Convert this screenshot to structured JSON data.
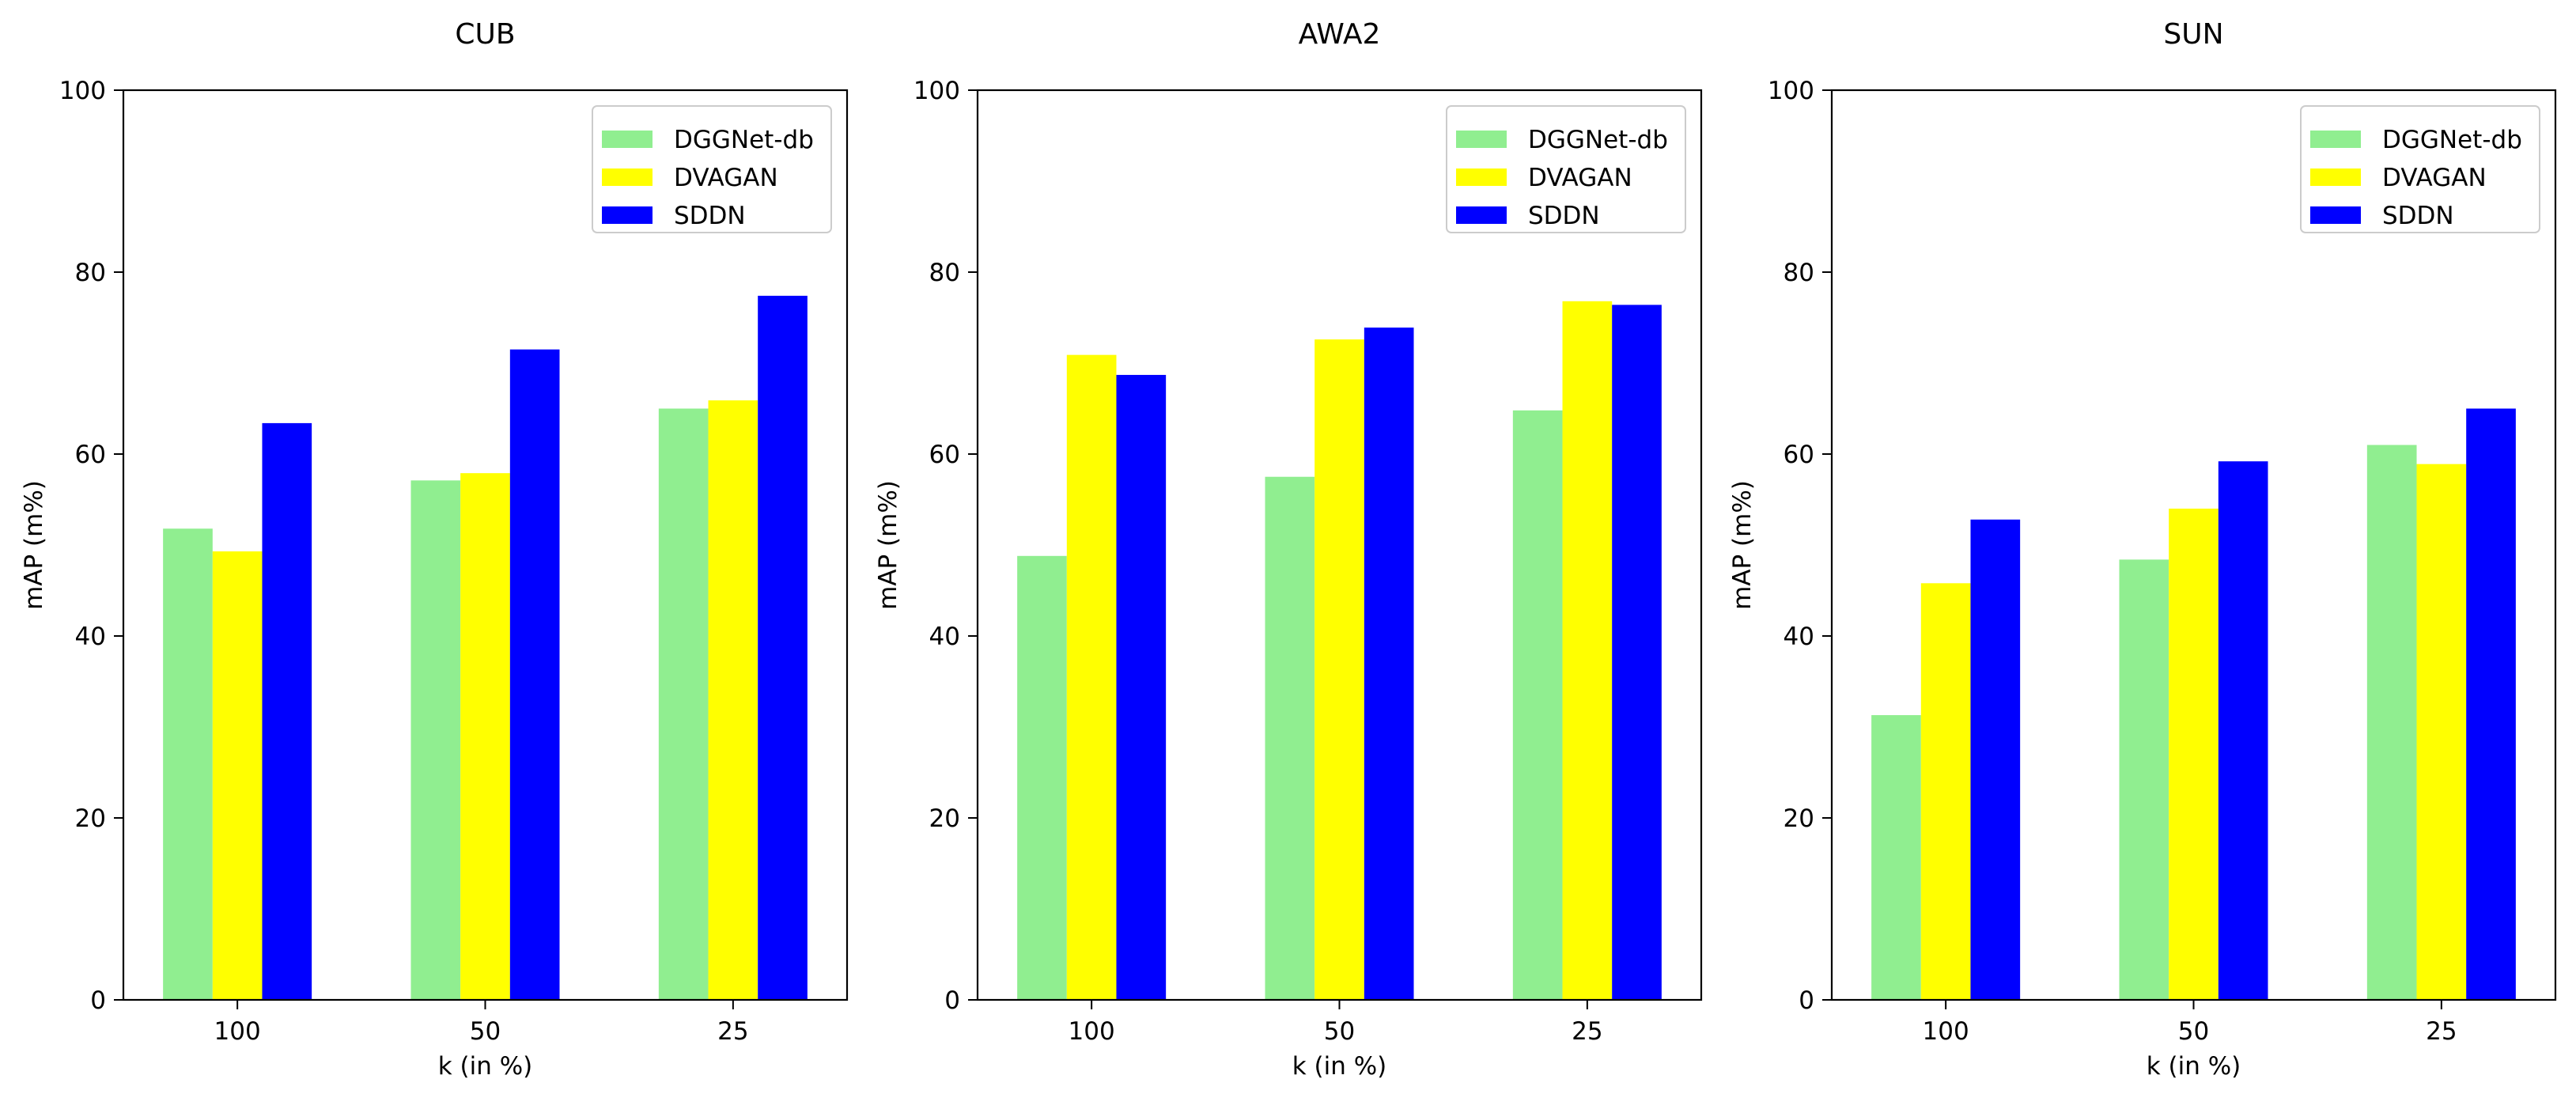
{
  "chart_data": [
    {
      "type": "bar",
      "title": "CUB",
      "xlabel": "k (in %)",
      "ylabel": "mAP (m%)",
      "categories": [
        "100",
        "50",
        "25"
      ],
      "ylim": [
        0,
        100
      ],
      "yticks": [
        0,
        20,
        40,
        60,
        80,
        100
      ],
      "legend": "top-right",
      "series": [
        {
          "name": "DGGNet-db",
          "color": "#90ee90",
          "values": [
            51.8,
            57.1,
            65.0
          ]
        },
        {
          "name": "DVAGAN",
          "color": "#ffff00",
          "values": [
            49.3,
            57.9,
            65.9
          ]
        },
        {
          "name": "SDDN",
          "color": "#0000ff",
          "values": [
            63.4,
            71.5,
            77.4
          ]
        }
      ]
    },
    {
      "type": "bar",
      "title": "AWA2",
      "xlabel": "k (in %)",
      "ylabel": "mAP (m%)",
      "categories": [
        "100",
        "50",
        "25"
      ],
      "ylim": [
        0,
        100
      ],
      "yticks": [
        0,
        20,
        40,
        60,
        80,
        100
      ],
      "legend": "top-right",
      "series": [
        {
          "name": "DGGNet-db",
          "color": "#90ee90",
          "values": [
            48.8,
            57.5,
            64.8
          ]
        },
        {
          "name": "DVAGAN",
          "color": "#ffff00",
          "values": [
            70.9,
            72.6,
            76.8
          ]
        },
        {
          "name": "SDDN",
          "color": "#0000ff",
          "values": [
            68.7,
            73.9,
            76.4
          ]
        }
      ]
    },
    {
      "type": "bar",
      "title": "SUN",
      "xlabel": "k (in %)",
      "ylabel": "mAP (m%)",
      "categories": [
        "100",
        "50",
        "25"
      ],
      "ylim": [
        0,
        100
      ],
      "yticks": [
        0,
        20,
        40,
        60,
        80,
        100
      ],
      "legend": "top-right",
      "series": [
        {
          "name": "DGGNet-db",
          "color": "#90ee90",
          "values": [
            31.3,
            48.4,
            61.0
          ]
        },
        {
          "name": "DVAGAN",
          "color": "#ffff00",
          "values": [
            45.8,
            54.0,
            58.9
          ]
        },
        {
          "name": "SDDN",
          "color": "#0000ff",
          "values": [
            52.8,
            59.2,
            65.0
          ]
        }
      ]
    }
  ]
}
